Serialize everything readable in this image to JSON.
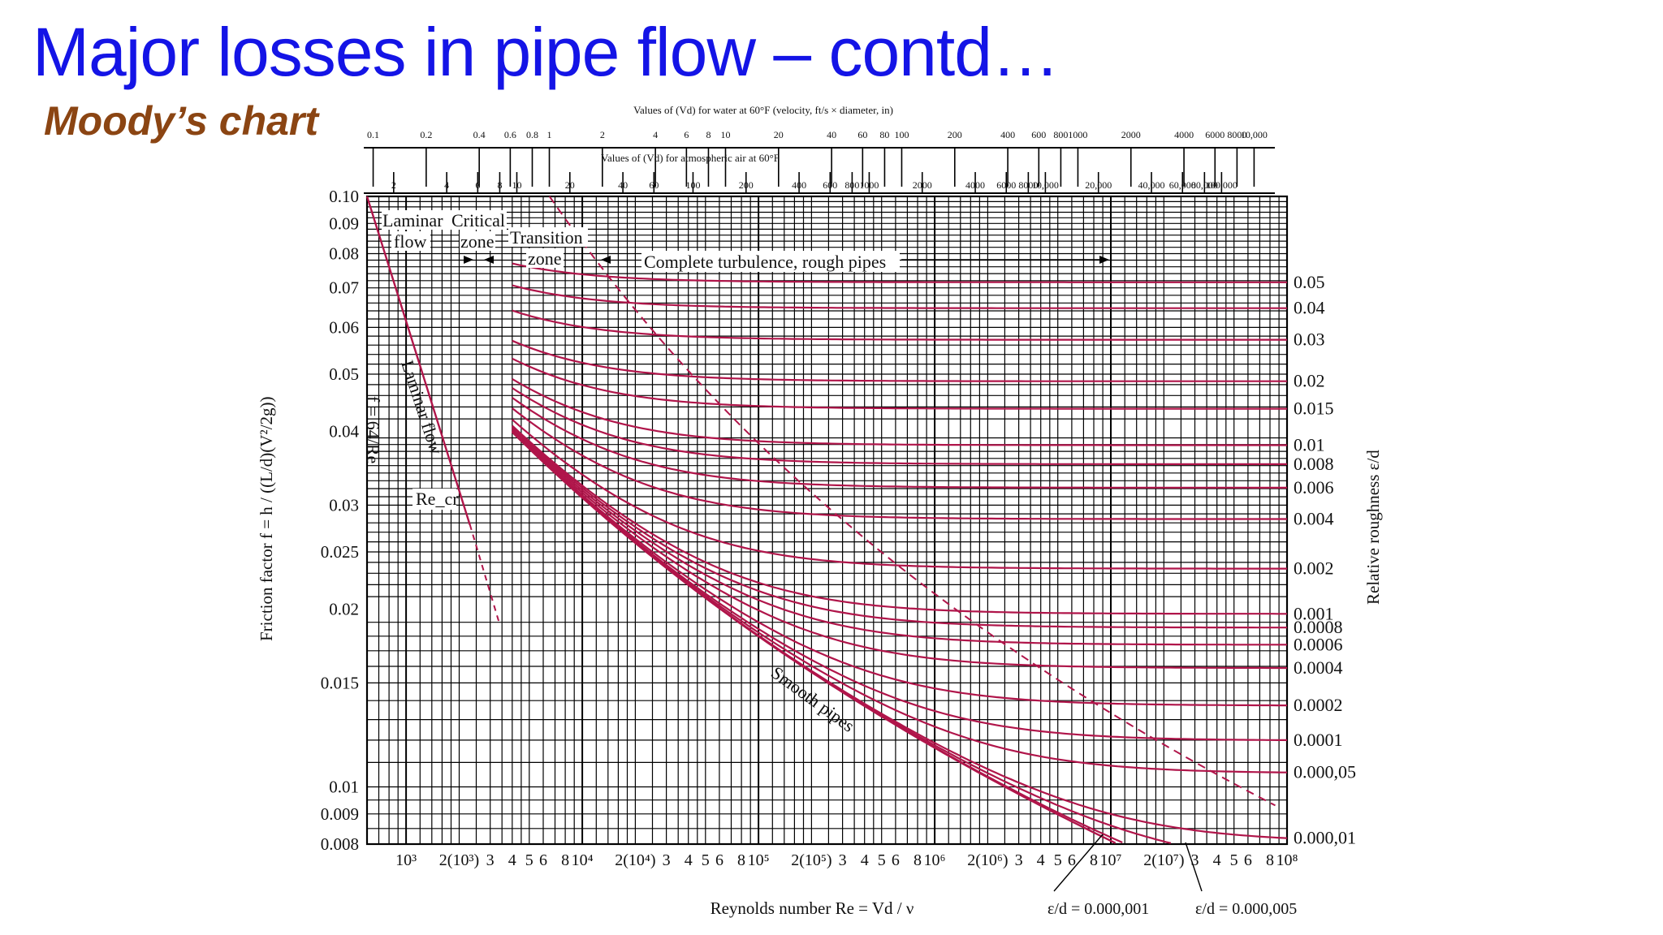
{
  "slide": {
    "title": "Major losses in pipe flow – contd…",
    "subtitle": "Moody’s chart",
    "title_color": "#1414e6",
    "subtitle_color": "#8b4513"
  },
  "chart_data": {
    "type": "line",
    "title": "",
    "x_scale": "log",
    "y_scale": "log",
    "xlim": [
      600,
      100000000
    ],
    "ylim": [
      0.008,
      0.1
    ],
    "grid": true,
    "xlabel": "Reynolds number Re = Vd / ν",
    "ylabel": "Friction factor f = h / ((L/d)(V²/2g))",
    "right_label": "Relative roughness ε/d",
    "top_axis_1_title": "Values of (Vd) for water at 60°F (velocity, ft/s × diameter, in)",
    "top_axis_2_title": "Values of (Vd) for atmospheric air at 60°F",
    "top_axis_1_ticks": [
      {
        "label": "0.1",
        "re": 650
      },
      {
        "label": "0.2",
        "re": 1300
      },
      {
        "label": "0.4",
        "re": 2600
      },
      {
        "label": "0.6",
        "re": 3900
      },
      {
        "label": "0.8",
        "re": 5200
      },
      {
        "label": "1",
        "re": 6500
      },
      {
        "label": "2",
        "re": 13000
      },
      {
        "label": "4",
        "re": 26000
      },
      {
        "label": "6",
        "re": 39000
      },
      {
        "label": "8",
        "re": 52000
      },
      {
        "label": "10",
        "re": 65000
      },
      {
        "label": "20",
        "re": 130000
      },
      {
        "label": "40",
        "re": 260000
      },
      {
        "label": "60",
        "re": 390000
      },
      {
        "label": "80",
        "re": 520000
      },
      {
        "label": "100",
        "re": 650000
      },
      {
        "label": "200",
        "re": 1300000
      },
      {
        "label": "400",
        "re": 2600000
      },
      {
        "label": "600",
        "re": 3900000
      },
      {
        "label": "800",
        "re": 5200000
      },
      {
        "label": "1000",
        "re": 6500000
      },
      {
        "label": "2000",
        "re": 13000000
      },
      {
        "label": "4000",
        "re": 26000000
      },
      {
        "label": "6000",
        "re": 39000000
      },
      {
        "label": "8000",
        "re": 52000000
      },
      {
        "label": "10,000",
        "re": 65000000
      }
    ],
    "top_axis_2_ticks": [
      {
        "label": "2",
        "re": 850
      },
      {
        "label": "4",
        "re": 1700
      },
      {
        "label": "6",
        "re": 2550
      },
      {
        "label": "8",
        "re": 3400
      },
      {
        "label": "10",
        "re": 4250
      },
      {
        "label": "20",
        "re": 8500
      },
      {
        "label": "40",
        "re": 17000
      },
      {
        "label": "60",
        "re": 25500
      },
      {
        "label": "100",
        "re": 42500
      },
      {
        "label": "200",
        "re": 85000
      },
      {
        "label": "400",
        "re": 170000
      },
      {
        "label": "600",
        "re": 255000
      },
      {
        "label": "800",
        "re": 340000
      },
      {
        "label": "1000",
        "re": 425000
      },
      {
        "label": "2000",
        "re": 850000
      },
      {
        "label": "4000",
        "re": 1700000
      },
      {
        "label": "6000",
        "re": 2550000
      },
      {
        "label": "8000",
        "re": 3400000
      },
      {
        "label": "10,000",
        "re": 4250000
      },
      {
        "label": "20,000",
        "re": 8500000
      },
      {
        "label": "40,000",
        "re": 17000000
      },
      {
        "label": "60,000",
        "re": 25500000
      },
      {
        "label": "80,000",
        "re": 34000000
      },
      {
        "label": "100,000",
        "re": 42500000
      }
    ],
    "x_tick_labels": [
      {
        "label": "10³",
        "re": 1000
      },
      {
        "label": "2(10³)",
        "re": 2000
      },
      {
        "label": "3",
        "re": 3000
      },
      {
        "label": "4",
        "re": 4000
      },
      {
        "label": "5",
        "re": 5000
      },
      {
        "label": "6",
        "re": 6000
      },
      {
        "label": "8",
        "re": 8000
      },
      {
        "label": "10⁴",
        "re": 10000
      },
      {
        "label": "2(10⁴)",
        "re": 20000
      },
      {
        "label": "3",
        "re": 30000
      },
      {
        "label": "4",
        "re": 40000
      },
      {
        "label": "5",
        "re": 50000
      },
      {
        "label": "6",
        "re": 60000
      },
      {
        "label": "8",
        "re": 80000
      },
      {
        "label": "10⁵",
        "re": 100000
      },
      {
        "label": "2(10⁵)",
        "re": 200000
      },
      {
        "label": "3",
        "re": 300000
      },
      {
        "label": "4",
        "re": 400000
      },
      {
        "label": "5",
        "re": 500000
      },
      {
        "label": "6",
        "re": 600000
      },
      {
        "label": "8",
        "re": 800000
      },
      {
        "label": "10⁶",
        "re": 1000000
      },
      {
        "label": "2(10⁶)",
        "re": 2000000
      },
      {
        "label": "3",
        "re": 3000000
      },
      {
        "label": "4",
        "re": 4000000
      },
      {
        "label": "5",
        "re": 5000000
      },
      {
        "label": "6",
        "re": 6000000
      },
      {
        "label": "8",
        "re": 8000000
      },
      {
        "label": "10⁷",
        "re": 10000000
      },
      {
        "label": "2(10⁷)",
        "re": 20000000
      },
      {
        "label": "3",
        "re": 30000000
      },
      {
        "label": "4",
        "re": 40000000
      },
      {
        "label": "5",
        "re": 50000000
      },
      {
        "label": "6",
        "re": 60000000
      },
      {
        "label": "8",
        "re": 80000000
      },
      {
        "label": "10⁸",
        "re": 100000000
      }
    ],
    "y_tick_labels": [
      {
        "label": "0.10",
        "f": 0.1
      },
      {
        "label": "0.09",
        "f": 0.09
      },
      {
        "label": "0.08",
        "f": 0.08
      },
      {
        "label": "0.07",
        "f": 0.07
      },
      {
        "label": "0.06",
        "f": 0.06
      },
      {
        "label": "0.05",
        "f": 0.05
      },
      {
        "label": "0.04",
        "f": 0.04
      },
      {
        "label": "0.03",
        "f": 0.03
      },
      {
        "label": "0.025",
        "f": 0.025
      },
      {
        "label": "0.02",
        "f": 0.02
      },
      {
        "label": "0.015",
        "f": 0.015
      },
      {
        "label": "0.01",
        "f": 0.01
      },
      {
        "label": "0.009",
        "f": 0.009
      },
      {
        "label": "0.008",
        "f": 0.008
      }
    ],
    "roughness_labels": [
      {
        "label": "0.05",
        "rr": 0.05
      },
      {
        "label": "0.04",
        "rr": 0.04
      },
      {
        "label": "0.03",
        "rr": 0.03
      },
      {
        "label": "0.02",
        "rr": 0.02
      },
      {
        "label": "0.015",
        "rr": 0.015
      },
      {
        "label": "0.01",
        "rr": 0.01
      },
      {
        "label": "0.008",
        "rr": 0.008
      },
      {
        "label": "0.006",
        "rr": 0.006
      },
      {
        "label": "0.004",
        "rr": 0.004
      },
      {
        "label": "0.002",
        "rr": 0.002
      },
      {
        "label": "0.001",
        "rr": 0.001
      },
      {
        "label": "0.0008",
        "rr": 0.0008
      },
      {
        "label": "0.0006",
        "rr": 0.0006
      },
      {
        "label": "0.0004",
        "rr": 0.0004
      },
      {
        "label": "0.0002",
        "rr": 0.0002
      },
      {
        "label": "0.0001",
        "rr": 0.0001
      },
      {
        "label": "0.000,05",
        "rr": 5e-05
      },
      {
        "label": "0.000,01",
        "rr": 1e-05
      }
    ],
    "extra_curve_labels": [
      {
        "label": "= 0.000,001",
        "rr": 1e-06
      },
      {
        "label": "= 0.000,005",
        "rr": 5e-06
      }
    ],
    "series": [
      {
        "name": "Laminar flow",
        "formula": "f = 64/Re",
        "x": [
          600,
          2300
        ],
        "y": [
          0.107,
          0.0278
        ]
      },
      {
        "name": "Smooth pipes",
        "x": [
          4000,
          10000,
          100000,
          1000000,
          10000000,
          100000000
        ],
        "y": [
          0.04,
          0.0309,
          0.018,
          0.0116,
          0.0081,
          0.0059
        ]
      }
    ],
    "zone_labels": [
      "Laminar flow",
      "Critical zone",
      "Transition zone",
      "Complete turbulence, rough pipes"
    ],
    "annotations": [
      "Laminar flow",
      "f = 64/Re",
      "Re_cr",
      "Smooth pipes"
    ],
    "curve_color": "#b0154a",
    "grid_color": "#000000"
  }
}
